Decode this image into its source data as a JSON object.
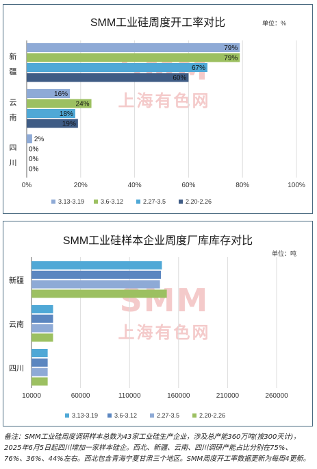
{
  "chart_data": [
    {
      "type": "bar",
      "orientation": "horizontal",
      "title": "SMM工业硅周度开工率对比",
      "unit": "单位：%",
      "categories": [
        "新疆",
        "云南",
        "四川"
      ],
      "series": [
        {
          "name": "3.13-3.19",
          "values": [
            79,
            16,
            2
          ],
          "labels": [
            "79%",
            "16%",
            "2%"
          ],
          "color": "#8eaad6"
        },
        {
          "name": "3.6-3.12",
          "values": [
            79,
            24,
            0
          ],
          "labels": [
            "79%",
            "24%",
            "0%"
          ],
          "color": "#9cc061"
        },
        {
          "name": "2.27-3.5",
          "values": [
            67,
            18,
            0
          ],
          "labels": [
            "67%",
            "18%",
            "0%"
          ],
          "color": "#4fa8d6"
        },
        {
          "name": "2.20-2.26",
          "values": [
            60,
            19,
            0
          ],
          "labels": [
            "60%",
            "19%",
            "0%"
          ],
          "color": "#3f5c85"
        }
      ],
      "xlim": [
        0,
        100
      ],
      "xticks": [
        0,
        20,
        40,
        60,
        80,
        100
      ],
      "xtick_labels": [
        "0%",
        "20%",
        "40%",
        "60%",
        "80%",
        "100%"
      ],
      "grid": true,
      "legend_position": "bottom"
    },
    {
      "type": "bar",
      "orientation": "horizontal",
      "title": "SMM工业硅样本企业周度厂库库存对比",
      "unit": "单位：吨",
      "categories": [
        "新疆",
        "云南",
        "四川"
      ],
      "series": [
        {
          "name": "3.13-3.19",
          "values": [
            143000,
            32000,
            26500
          ],
          "color": "#4fa8d6"
        },
        {
          "name": "3.6-3.12",
          "values": [
            142000,
            32000,
            26500
          ],
          "color": "#5b86c0"
        },
        {
          "name": "2.27-3.5",
          "values": [
            141000,
            32000,
            26500
          ],
          "color": "#8eaad6"
        },
        {
          "name": "2.20-2.26",
          "values": [
            148000,
            32000,
            26500
          ],
          "color": "#9cc061"
        }
      ],
      "xlim": [
        10000,
        260000
      ],
      "xticks": [
        10000,
        60000,
        110000,
        160000,
        210000,
        260000
      ],
      "xtick_labels": [
        "10000",
        "60000",
        "110000",
        "160000",
        "210000",
        "260000"
      ],
      "grid": true,
      "legend_position": "bottom"
    }
  ],
  "watermark": {
    "big": "SMM",
    "small": "上海有色网"
  },
  "note": "备注：SMM工业硅周度调研样本总数为43家工业硅生产企业，涉及总产能360万吨(按300天计)，2025年6月5日起四川增加一家样本硅企。西北、新疆、云南、四川调研产能占比分别在75%、76%、36%、44%左右。西北包含青海宁夏甘肃三个地区。SMM周度开工率数据更新为每周4更新。"
}
